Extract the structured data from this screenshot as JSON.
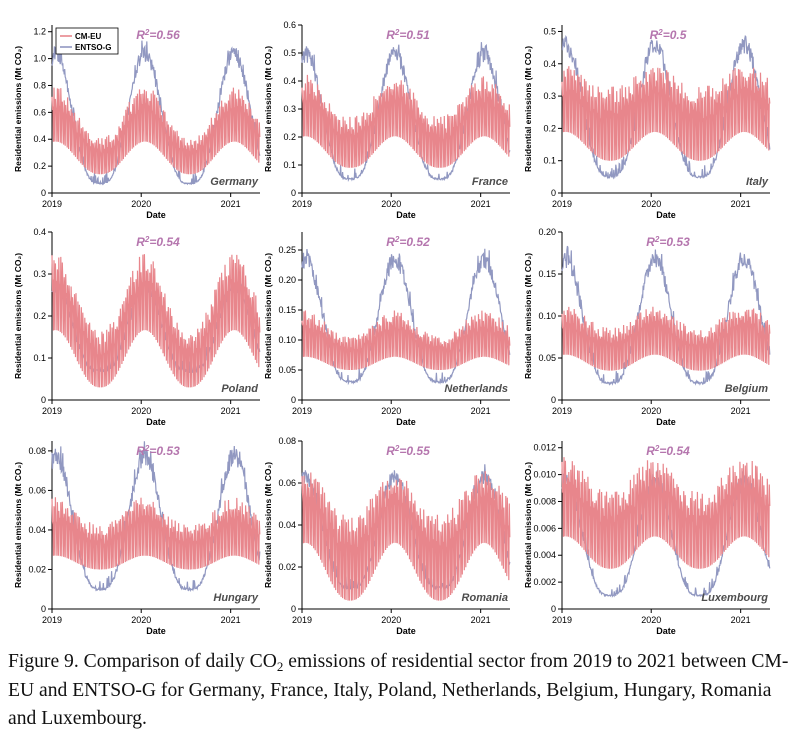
{
  "figure": {
    "legend": [
      {
        "label": "CM-EU",
        "color": "#e8868c"
      },
      {
        "label": "ENTSO-G",
        "color": "#9198c1"
      }
    ],
    "ylabel": "Residential emissions (Mt CO₂)",
    "xlabel": "Date",
    "x_ticks": [
      "2019",
      "2020",
      "2021"
    ],
    "r2_color": "#b576ae",
    "country_label_color": "#4d4d4d"
  },
  "caption": {
    "prefix": "Figure 9. Comparison of daily CO",
    "subscript": "2",
    "suffix": " emissions of residential sector from 2019 to 2021 between CM-EU and ENTSO-G for Germany, France, Italy, Poland, Netherlands, Belgium, Hungary, Romania and Luxembourg."
  },
  "chart_data": [
    {
      "type": "line",
      "country": "Germany",
      "r2": "0.56",
      "x_range": [
        "2019-01-01",
        "2021-05-01"
      ],
      "ylim": [
        0,
        1.25
      ],
      "yticks": [
        "0",
        "0.2",
        "0.4",
        "0.6",
        "0.8",
        "1.0",
        "1.2"
      ],
      "series": [
        {
          "name": "CM-EU",
          "winter_peak": 0.85,
          "summer_high": 0.38,
          "summer_low": 0.14
        },
        {
          "name": "ENTSO-G",
          "winter_peak": 1.15,
          "summer_low": 0.07
        }
      ]
    },
    {
      "type": "line",
      "country": "France",
      "r2": "0.51",
      "x_range": [
        "2019-01-01",
        "2021-05-01"
      ],
      "ylim": [
        0,
        0.6
      ],
      "yticks": [
        "0",
        "0.1",
        "0.2",
        "0.3",
        "0.4",
        "0.5",
        "0.6"
      ],
      "series": [
        {
          "name": "CM-EU",
          "winter_peak": 0.45,
          "summer_high": 0.25,
          "summer_low": 0.09
        },
        {
          "name": "ENTSO-G",
          "winter_peak": 0.55,
          "summer_low": 0.05
        }
      ]
    },
    {
      "type": "line",
      "country": "Italy",
      "r2": "0.5",
      "x_range": [
        "2019-01-01",
        "2021-05-01"
      ],
      "ylim": [
        0,
        0.52
      ],
      "yticks": [
        "0",
        "0.1",
        "0.2",
        "0.3",
        "0.4",
        "0.5"
      ],
      "series": [
        {
          "name": "CM-EU",
          "winter_peak": 0.42,
          "summer_high": 0.3,
          "summer_low": 0.1
        },
        {
          "name": "ENTSO-G",
          "winter_peak": 0.51,
          "summer_low": 0.05
        }
      ]
    },
    {
      "type": "line",
      "country": "Poland",
      "r2": "0.54",
      "x_range": [
        "2019-01-01",
        "2021-05-01"
      ],
      "ylim": [
        0,
        0.4
      ],
      "yticks": [
        "0",
        "0.1",
        "0.2",
        "0.3",
        "0.4"
      ],
      "series": [
        {
          "name": "CM-EU",
          "winter_peak": 0.37,
          "summer_high": 0.15,
          "summer_low": 0.03
        },
        {
          "name": "ENTSO-G",
          "winter_peak": 0.3,
          "summer_low": 0.07
        }
      ]
    },
    {
      "type": "line",
      "country": "Netherlands",
      "r2": "0.52",
      "x_range": [
        "2019-01-01",
        "2021-05-01"
      ],
      "ylim": [
        0,
        0.28
      ],
      "yticks": [
        "0",
        "0.05",
        "0.10",
        "0.15",
        "0.20",
        "0.25"
      ],
      "series": [
        {
          "name": "CM-EU",
          "winter_peak": 0.16,
          "summer_high": 0.1,
          "summer_low": 0.05
        },
        {
          "name": "ENTSO-G",
          "winter_peak": 0.26,
          "summer_low": 0.03
        }
      ]
    },
    {
      "type": "line",
      "country": "Belgium",
      "r2": "0.53",
      "x_range": [
        "2019-01-01",
        "2021-05-01"
      ],
      "ylim": [
        0,
        0.2
      ],
      "yticks": [
        "0",
        "0.05",
        "0.10",
        "0.15",
        "0.20"
      ],
      "series": [
        {
          "name": "CM-EU",
          "winter_peak": 0.12,
          "summer_high": 0.08,
          "summer_low": 0.035
        },
        {
          "name": "ENTSO-G",
          "winter_peak": 0.185,
          "summer_low": 0.02
        }
      ]
    },
    {
      "type": "line",
      "country": "Hungary",
      "r2": "0.53",
      "x_range": [
        "2019-01-01",
        "2021-05-01"
      ],
      "ylim": [
        0,
        0.085
      ],
      "yticks": [
        "0",
        "0.02",
        "0.04",
        "0.06",
        "0.08"
      ],
      "series": [
        {
          "name": "CM-EU",
          "winter_peak": 0.06,
          "summer_high": 0.04,
          "summer_low": 0.02
        },
        {
          "name": "ENTSO-G",
          "winter_peak": 0.085,
          "summer_low": 0.01
        }
      ]
    },
    {
      "type": "line",
      "country": "Romania",
      "r2": "0.55",
      "x_range": [
        "2019-01-01",
        "2021-05-01"
      ],
      "ylim": [
        0,
        0.08
      ],
      "yticks": [
        "0",
        "0.02",
        "0.04",
        "0.06",
        "0.08"
      ],
      "series": [
        {
          "name": "CM-EU",
          "winter_peak": 0.07,
          "summer_high": 0.04,
          "summer_low": 0.004
        },
        {
          "name": "ENTSO-G",
          "winter_peak": 0.07,
          "summer_low": 0.01
        }
      ]
    },
    {
      "type": "line",
      "country": "Luxembourg",
      "r2": "0.54",
      "x_range": [
        "2019-01-01",
        "2021-05-01"
      ],
      "ylim": [
        0,
        0.0125
      ],
      "yticks": [
        "0",
        "0.002",
        "0.004",
        "0.006",
        "0.008",
        "0.010",
        "0.012"
      ],
      "series": [
        {
          "name": "CM-EU",
          "winter_peak": 0.012,
          "summer_high": 0.008,
          "summer_low": 0.003
        },
        {
          "name": "ENTSO-G",
          "winter_peak": 0.0105,
          "summer_low": 0.001
        }
      ]
    }
  ]
}
